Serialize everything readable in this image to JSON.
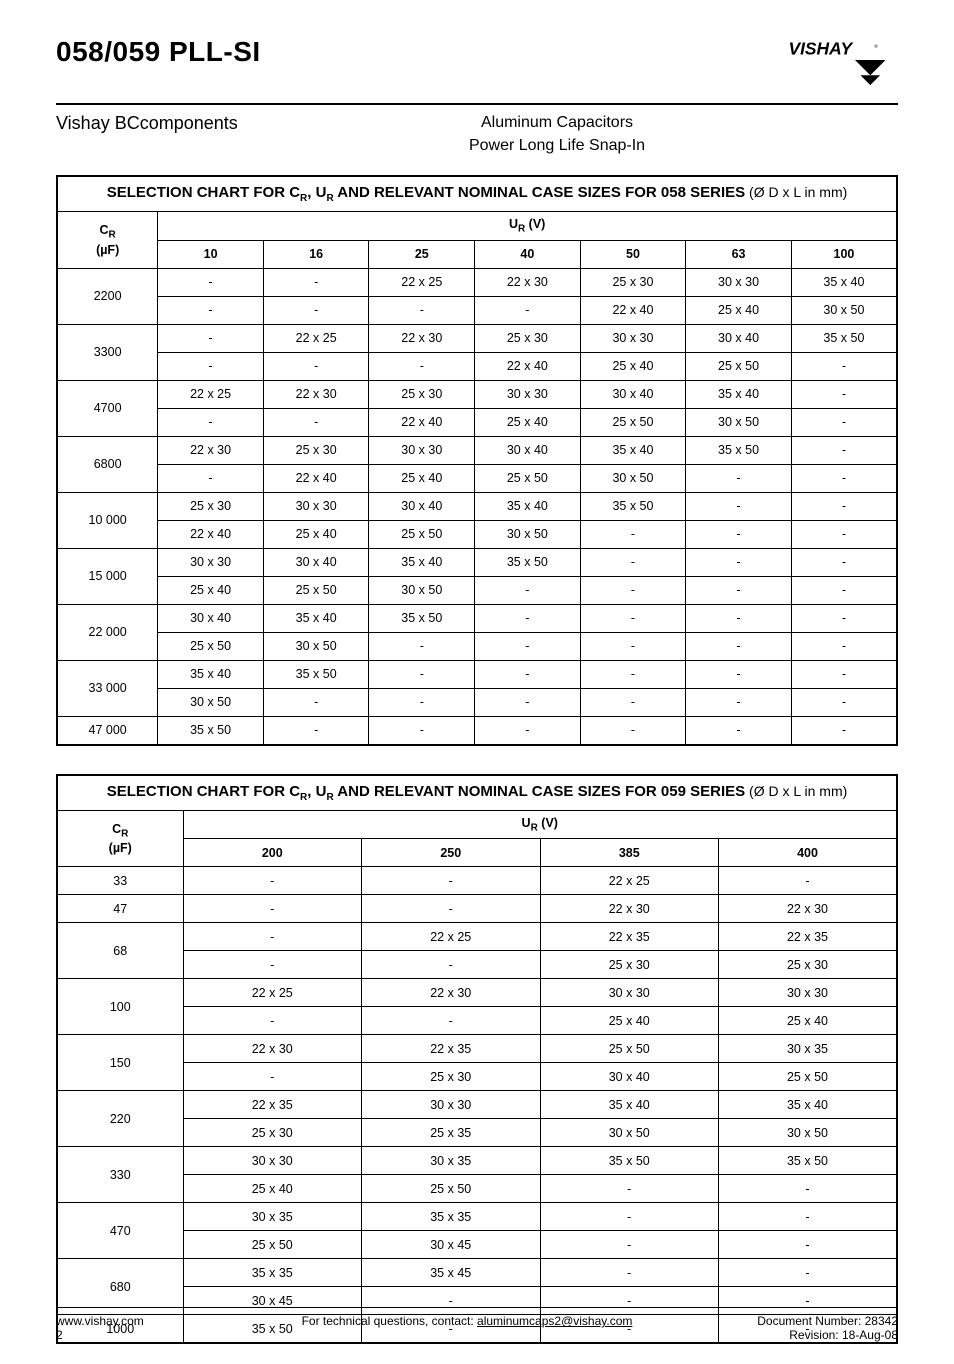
{
  "header": {
    "title": "058/059 PLL-SI",
    "subhead": "Vishay BCcomponents",
    "center1": "Aluminum Capacitors",
    "center2": "Power Long Life Snap-In",
    "logo_text": "VISHAY"
  },
  "table058": {
    "caption_prefix": "SELECTION CHART FOR C",
    "caption_mid": ", U",
    "caption_suffix": " AND RELEVANT NOMINAL CASE SIZES FOR 058 SERIES",
    "caption_light": " (Ø D x L in mm)",
    "row_header_top": "C",
    "row_header_top_sub": "R",
    "row_header_unit": "(µF)",
    "col_superheader": "U",
    "col_superheader_sub": "R",
    "col_superheader_unit": " (V)",
    "voltages": [
      "10",
      "16",
      "25",
      "40",
      "50",
      "63",
      "100"
    ],
    "rows": [
      {
        "cr": "2200",
        "cells": [
          [
            "-",
            "-",
            "22 x 25",
            "22 x 30",
            "25 x 30",
            "30 x 30",
            "35 x 40"
          ],
          [
            "-",
            "-",
            "-",
            "-",
            "22 x 40",
            "25 x 40",
            "30 x 50"
          ]
        ]
      },
      {
        "cr": "3300",
        "cells": [
          [
            "-",
            "22 x 25",
            "22 x 30",
            "25 x 30",
            "30 x 30",
            "30 x 40",
            "35 x 50"
          ],
          [
            "-",
            "-",
            "-",
            "22 x 40",
            "25 x 40",
            "25 x 50",
            "-"
          ]
        ]
      },
      {
        "cr": "4700",
        "cells": [
          [
            "22 x 25",
            "22 x 30",
            "25 x 30",
            "30 x 30",
            "30 x 40",
            "35 x 40",
            "-"
          ],
          [
            "-",
            "-",
            "22 x 40",
            "25 x 40",
            "25 x 50",
            "30 x 50",
            "-"
          ]
        ]
      },
      {
        "cr": "6800",
        "cells": [
          [
            "22 x 30",
            "25 x 30",
            "30 x 30",
            "30 x 40",
            "35 x 40",
            "35 x 50",
            "-"
          ],
          [
            "-",
            "22 x 40",
            "25 x 40",
            "25 x 50",
            "30 x 50",
            "-",
            "-"
          ]
        ]
      },
      {
        "cr": "10 000",
        "cells": [
          [
            "25 x 30",
            "30 x 30",
            "30 x 40",
            "35 x 40",
            "35 x 50",
            "-",
            "-"
          ],
          [
            "22 x 40",
            "25 x 40",
            "25 x 50",
            "30 x 50",
            "-",
            "-",
            "-"
          ]
        ]
      },
      {
        "cr": "15 000",
        "cells": [
          [
            "30 x 30",
            "30 x 40",
            "35 x 40",
            "35 x 50",
            "-",
            "-",
            "-"
          ],
          [
            "25 x 40",
            "25 x 50",
            "30 x 50",
            "-",
            "-",
            "-",
            "-"
          ]
        ]
      },
      {
        "cr": "22 000",
        "cells": [
          [
            "30 x 40",
            "35 x 40",
            "35 x 50",
            "-",
            "-",
            "-",
            "-"
          ],
          [
            "25 x 50",
            "30 x 50",
            "-",
            "-",
            "-",
            "-",
            "-"
          ]
        ]
      },
      {
        "cr": "33 000",
        "cells": [
          [
            "35 x 40",
            "35 x 50",
            "-",
            "-",
            "-",
            "-",
            "-"
          ],
          [
            "30 x 50",
            "-",
            "-",
            "-",
            "-",
            "-",
            "-"
          ]
        ]
      },
      {
        "cr": "47 000",
        "cells": [
          [
            "35 x 50",
            "-",
            "-",
            "-",
            "-",
            "-",
            "-"
          ]
        ]
      }
    ]
  },
  "table059": {
    "caption_prefix": "SELECTION CHART FOR C",
    "caption_mid": ", U",
    "caption_suffix": " AND RELEVANT NOMINAL CASE SIZES FOR 059 SERIES",
    "caption_light": " (Ø D x L in mm)",
    "row_header_top": "C",
    "row_header_top_sub": "R",
    "row_header_unit": "(µF)",
    "col_superheader": "U",
    "col_superheader_sub": "R",
    "col_superheader_unit": " (V)",
    "voltages": [
      "200",
      "250",
      "385",
      "400"
    ],
    "rows": [
      {
        "cr": "33",
        "cells": [
          [
            "-",
            "-",
            "22 x 25",
            "-"
          ]
        ]
      },
      {
        "cr": "47",
        "cells": [
          [
            "-",
            "-",
            "22 x 30",
            "22 x 30"
          ]
        ]
      },
      {
        "cr": "68",
        "cells": [
          [
            "-",
            "22 x 25",
            "22 x 35",
            "22 x 35"
          ],
          [
            "-",
            "-",
            "25 x 30",
            "25 x 30"
          ]
        ]
      },
      {
        "cr": "100",
        "cells": [
          [
            "22 x 25",
            "22 x 30",
            "30 x 30",
            "30 x 30"
          ],
          [
            "-",
            "-",
            "25 x 40",
            "25 x 40"
          ]
        ]
      },
      {
        "cr": "150",
        "cells": [
          [
            "22 x 30",
            "22 x 35",
            "25 x 50",
            "30 x 35"
          ],
          [
            "-",
            "25 x 30",
            "30 x 40",
            "25 x 50"
          ]
        ]
      },
      {
        "cr": "220",
        "cells": [
          [
            "22 x 35",
            "30 x 30",
            "35 x 40",
            "35 x 40"
          ],
          [
            "25 x 30",
            "25 x 35",
            "30 x 50",
            "30 x 50"
          ]
        ]
      },
      {
        "cr": "330",
        "cells": [
          [
            "30 x 30",
            "30 x 35",
            "35 x 50",
            "35 x 50"
          ],
          [
            "25 x 40",
            "25 x 50",
            "-",
            "-"
          ]
        ]
      },
      {
        "cr": "470",
        "cells": [
          [
            "30 x 35",
            "35 x 35",
            "-",
            "-"
          ],
          [
            "25 x 50",
            "30 x 45",
            "-",
            "-"
          ]
        ]
      },
      {
        "cr": "680",
        "cells": [
          [
            "35 x 35",
            "35 x 45",
            "-",
            "-"
          ],
          [
            "30 x 45",
            "-",
            "-",
            "-"
          ]
        ]
      },
      {
        "cr": "1000",
        "cells": [
          [
            "35 x 50",
            "-",
            "-",
            "-"
          ]
        ]
      }
    ]
  },
  "footer": {
    "site": "www.vishay.com",
    "page": "2",
    "center": "For technical questions, contact: ",
    "email": "aluminumcaps2@vishay.com",
    "docnum": "Document Number: 28342",
    "rev": "Revision: 18-Aug-08"
  }
}
